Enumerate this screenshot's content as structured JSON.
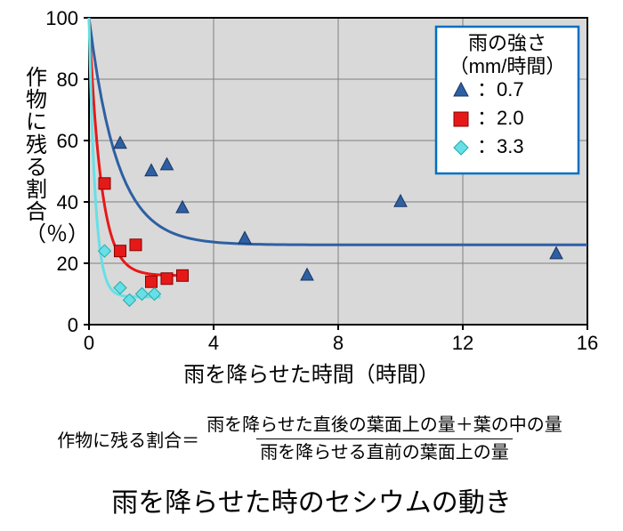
{
  "chart": {
    "type": "scatter-with-fit",
    "background_color": "#d9d9d9",
    "plot_border_color": "#000000",
    "grid_color": "#808080",
    "xlim": [
      0,
      16
    ],
    "ylim": [
      0,
      100
    ],
    "xticks": [
      0,
      4,
      8,
      12,
      16
    ],
    "yticks": [
      0,
      20,
      40,
      60,
      80,
      100
    ],
    "tick_fontsize": 22,
    "xlabel": "雨を降らせた時間（時間）",
    "ylabel": "作物に残る割合（％）",
    "axis_label_fontsize": 24,
    "legend": {
      "title": "雨の強さ",
      "unit": "（mm/時間）",
      "position": "top-right",
      "box_border_color": "#0070c0",
      "box_fill": "#ffffff",
      "fontsize": 22,
      "items": [
        {
          "marker": "triangle",
          "color": "#2e5fa3",
          "label": "：0.7"
        },
        {
          "marker": "square",
          "color": "#e61919",
          "label": "：2.0"
        },
        {
          "marker": "diamond",
          "color": "#66e0e6",
          "label": "：3.3"
        }
      ]
    },
    "series": [
      {
        "name": "0.7 mm/h",
        "marker": "triangle",
        "marker_color": "#2e5fa3",
        "marker_size": 14,
        "line_color": "#2e5fa3",
        "line_width": 3,
        "points": [
          {
            "x": 1.0,
            "y": 59
          },
          {
            "x": 2.0,
            "y": 50
          },
          {
            "x": 2.5,
            "y": 52
          },
          {
            "x": 3.0,
            "y": 38
          },
          {
            "x": 5.0,
            "y": 28
          },
          {
            "x": 7.0,
            "y": 16
          },
          {
            "x": 10.0,
            "y": 40
          },
          {
            "x": 15.0,
            "y": 23
          }
        ],
        "fit": {
          "a": 26,
          "b": 74,
          "k": 1.1
        }
      },
      {
        "name": "2.0 mm/h",
        "marker": "square",
        "marker_color": "#e61919",
        "marker_size": 13,
        "line_color": "#e61919",
        "line_width": 3,
        "points": [
          {
            "x": 0.5,
            "y": 46
          },
          {
            "x": 1.0,
            "y": 24
          },
          {
            "x": 1.5,
            "y": 26
          },
          {
            "x": 2.0,
            "y": 14
          },
          {
            "x": 2.5,
            "y": 15
          },
          {
            "x": 3.0,
            "y": 16
          }
        ],
        "fit": {
          "a": 16,
          "b": 84,
          "k": 2.6,
          "xmax": 3.2
        }
      },
      {
        "name": "3.3 mm/h",
        "marker": "diamond",
        "marker_color": "#66e0e6",
        "marker_size": 14,
        "line_color": "#66e0e6",
        "line_width": 3,
        "points": [
          {
            "x": 0.5,
            "y": 24
          },
          {
            "x": 1.0,
            "y": 12
          },
          {
            "x": 1.3,
            "y": 8
          },
          {
            "x": 1.7,
            "y": 10
          },
          {
            "x": 2.1,
            "y": 10
          }
        ],
        "fit": {
          "a": 9,
          "b": 91,
          "k": 5.0,
          "xmax": 2.3
        }
      }
    ]
  },
  "equation": {
    "lhs": "作物に残る割合＝",
    "numerator": "雨を降らせた直後の葉面上の量＋葉の中の量",
    "denominator": "雨を降らせる直前の葉面上の量"
  },
  "caption": "雨を降らせた時のセシウムの動き"
}
